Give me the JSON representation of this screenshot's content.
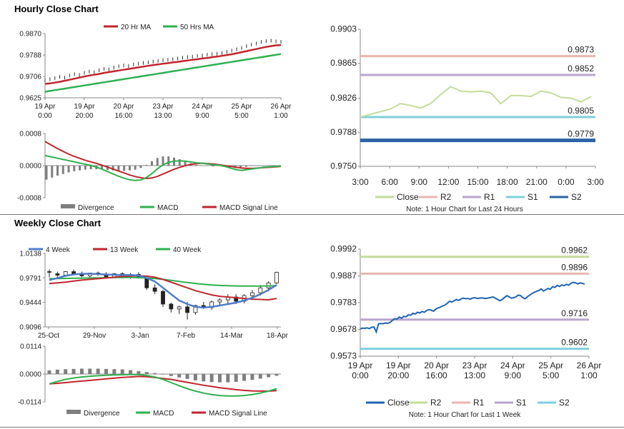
{
  "colors": {
    "ma20": "#c0262d",
    "ma50": "#2fb04f",
    "ma4w": "#4f7dc7",
    "ma13w": "#c0262d",
    "ma40w": "#2fb04f",
    "macd": "#2fb04f",
    "signal": "#c0262d",
    "divergence": "#7f7f7f",
    "close_light": "#c4dc9c",
    "close_dark": "#1f64b4",
    "r2": "#e8b6b0",
    "r1": "#b7a6cb",
    "s1": "#7fd0de",
    "s2": "#2b63a6",
    "r2_weekly": "#c4dc9c",
    "r1_weekly": "#e8b6b0",
    "s1_weekly": "#b7a6cb",
    "s2_weekly": "#7fd0de"
  },
  "hourly": {
    "title": "Hourly Close Chart",
    "price": {
      "legend": [
        "20 Hr MA",
        "50 Hrs MA"
      ],
      "yticks": [
        "0.9870",
        "0.9788",
        "0.9706",
        "0.9625"
      ],
      "ymin": 0.9625,
      "ymax": 0.987,
      "xticks": [
        [
          "19 Apr",
          "0:00"
        ],
        [
          "19 Apr",
          "20:00"
        ],
        [
          "20 Apr",
          "16:00"
        ],
        [
          "23 Apr",
          "13:00"
        ],
        [
          "24 Apr",
          "9:00"
        ],
        [
          "25 Apr",
          "5:00"
        ],
        [
          "26 Apr",
          "1:00"
        ]
      ],
      "close": [
        0.9692,
        0.9696,
        0.97,
        0.9705,
        0.9702,
        0.971,
        0.9715,
        0.9712,
        0.972,
        0.9725,
        0.9722,
        0.973,
        0.9735,
        0.9733,
        0.974,
        0.9745,
        0.9748,
        0.9746,
        0.9752,
        0.9755,
        0.9758,
        0.976,
        0.9763,
        0.9765,
        0.9768,
        0.977,
        0.9772,
        0.9775,
        0.9778,
        0.978,
        0.9782,
        0.9785,
        0.9786,
        0.9789,
        0.9791,
        0.9793,
        0.9796,
        0.98,
        0.9805,
        0.981,
        0.9815,
        0.9822,
        0.9828,
        0.9832,
        0.9838,
        0.9841,
        0.9843,
        0.984,
        0.9838
      ],
      "ma20": [
        0.9678,
        0.968,
        0.9683,
        0.9686,
        0.969,
        0.9694,
        0.9698,
        0.9702,
        0.9706,
        0.971,
        0.9713,
        0.9716,
        0.972,
        0.9723,
        0.9726,
        0.9729,
        0.9732,
        0.9735,
        0.9738,
        0.9741,
        0.9744,
        0.9747,
        0.975,
        0.9752,
        0.9755,
        0.9757,
        0.976,
        0.9762,
        0.9765,
        0.9767,
        0.977,
        0.9772,
        0.9775,
        0.9777,
        0.978,
        0.9782,
        0.9785,
        0.9788,
        0.9791,
        0.9795,
        0.9799,
        0.9803,
        0.9807,
        0.9811,
        0.9815,
        0.9819,
        0.9822,
        0.9825,
        0.9826
      ],
      "ma50": [
        0.9648,
        0.9651,
        0.9654,
        0.9657,
        0.966,
        0.9663,
        0.9666,
        0.9669,
        0.9672,
        0.9675,
        0.9678,
        0.9681,
        0.9684,
        0.9687,
        0.969,
        0.9693,
        0.9696,
        0.9699,
        0.9702,
        0.9705,
        0.9708,
        0.9711,
        0.9714,
        0.9717,
        0.972,
        0.9723,
        0.9726,
        0.9729,
        0.9732,
        0.9735,
        0.9738,
        0.9741,
        0.9744,
        0.9747,
        0.975,
        0.9753,
        0.9756,
        0.9759,
        0.9762,
        0.9765,
        0.9768,
        0.9771,
        0.9774,
        0.9777,
        0.978,
        0.9783,
        0.9786,
        0.9789,
        0.9792
      ]
    },
    "macd": {
      "yticks": [
        "0.0008",
        "0.0000",
        "-0.0008"
      ],
      "ymin": -0.0008,
      "ymax": 0.0008,
      "legend": [
        "Divergence",
        "MACD",
        "MACD Signal Line"
      ],
      "macd": [
        0.00025,
        0.00022,
        0.00019,
        0.00016,
        0.00013,
        0.0001,
        7e-05,
        4e-05,
        1e-05,
        -3e-05,
        -8e-05,
        -0.00014,
        -0.0002,
        -0.00026,
        -0.00031,
        -0.00035,
        -0.00037,
        -0.00036,
        -0.0003,
        -0.0002,
        -8e-05,
        2e-05,
        8e-05,
        0.00011,
        0.00012,
        0.00011,
        9e-05,
        7e-05,
        6e-05,
        4e-05,
        2e-05,
        1e-05,
        -2e-05,
        -6e-05,
        -0.0001,
        -0.00012,
        -0.0001,
        -8e-05,
        -6e-05,
        -4e-05,
        -3e-05,
        -2e-05,
        -1e-05
      ],
      "signal": [
        0.0006,
        0.00052,
        0.00044,
        0.00037,
        0.0003,
        0.00024,
        0.00019,
        0.00014,
        0.0001,
        6e-05,
        2e-05,
        -3e-05,
        -8e-05,
        -0.00013,
        -0.00018,
        -0.00023,
        -0.00027,
        -0.0003,
        -0.00032,
        -0.00031,
        -0.00027,
        -0.00021,
        -0.00015,
        -9e-05,
        -4e-05,
        0.0,
        3e-05,
        5e-05,
        6e-05,
        5e-05,
        4e-05,
        2e-05,
        0.0,
        -2e-05,
        -4e-05,
        -6e-05,
        -7e-05,
        -7e-05,
        -6e-05,
        -5e-05,
        -4e-05,
        -3e-05,
        -2e-05
      ],
      "divergence": [
        -0.00035,
        -0.0003,
        -0.00025,
        -0.00021,
        -0.00017,
        -0.00014,
        -0.00012,
        -0.0001,
        -9e-05,
        -9e-05,
        -0.0001,
        -0.00011,
        -0.00012,
        -0.00013,
        -0.00013,
        -0.00012,
        -0.0001,
        -6e-05,
        2e-05,
        0.00011,
        0.00019,
        0.00023,
        0.00023,
        0.0002,
        0.00016,
        0.00011,
        6e-05,
        2e-05,
        0.0,
        -1e-05,
        -2e-05,
        -1e-05,
        -2e-05,
        -4e-05,
        -6e-05,
        -6e-05,
        -3e-05,
        -1e-05,
        0.0,
        1e-05,
        1e-05,
        1e-05,
        1e-05
      ]
    },
    "levels": {
      "yticks": [
        "0.9903",
        "0.9865",
        "0.9826",
        "0.9788",
        "0.9750"
      ],
      "ymin": 0.975,
      "ymax": 0.9903,
      "xticks": [
        "3:00",
        "6:00",
        "9:00",
        "12:00",
        "15:00",
        "18:00",
        "21:00",
        "0:00",
        "3:00"
      ],
      "close": [
        0.9805,
        0.9808,
        0.9811,
        0.9814,
        0.982,
        0.9818,
        0.9815,
        0.982,
        0.983,
        0.9839,
        0.9834,
        0.9833,
        0.9834,
        0.9832,
        0.982,
        0.9829,
        0.9829,
        0.9828,
        0.9834,
        0.9832,
        0.9827,
        0.9826,
        0.9822,
        0.9828
      ],
      "R2": 0.9873,
      "R1": 0.9852,
      "S1": 0.9805,
      "S2": 0.9779,
      "labels": [
        "0.9873",
        "0.9852",
        "0.9805",
        "0.9779"
      ],
      "legend": [
        "Close",
        "R2",
        "R1",
        "S1",
        "S2"
      ],
      "note": "Note: 1 Hour Chart for Last 24 Hours"
    }
  },
  "weekly": {
    "title": "Weekly Close Chart",
    "price": {
      "legend": [
        "4 Week",
        "13 Week",
        "40 Week"
      ],
      "yticks": [
        "1.0138",
        "0.9791",
        "0.9444",
        "0.9096"
      ],
      "ymin": 0.9096,
      "ymax": 1.0138,
      "xticks": [
        "25-Oct",
        "29-Nov",
        "3-Jan",
        "7-Feb",
        "14-Mar",
        "18-Apr"
      ],
      "candles": [
        [
          0.988,
          0.991,
          0.98,
          0.987
        ],
        [
          0.985,
          0.988,
          0.979,
          0.983
        ],
        [
          0.983,
          0.989,
          0.981,
          0.988
        ],
        [
          0.988,
          0.991,
          0.984,
          0.985
        ],
        [
          0.985,
          0.988,
          0.98,
          0.982
        ],
        [
          0.982,
          0.986,
          0.979,
          0.986
        ],
        [
          0.986,
          0.988,
          0.982,
          0.984
        ],
        [
          0.984,
          0.987,
          0.979,
          0.98
        ],
        [
          0.98,
          0.986,
          0.979,
          0.985
        ],
        [
          0.985,
          0.987,
          0.98,
          0.981
        ],
        [
          0.981,
          0.986,
          0.978,
          0.984
        ],
        [
          0.984,
          0.987,
          0.978,
          0.979
        ],
        [
          0.979,
          0.98,
          0.962,
          0.965
        ],
        [
          0.965,
          0.97,
          0.956,
          0.96
        ],
        [
          0.96,
          0.962,
          0.938,
          0.942
        ],
        [
          0.942,
          0.944,
          0.93,
          0.935
        ],
        [
          0.935,
          0.94,
          0.928,
          0.938
        ],
        [
          0.938,
          0.945,
          0.92,
          0.93
        ],
        [
          0.93,
          0.941,
          0.927,
          0.94
        ],
        [
          0.94,
          0.945,
          0.935,
          0.937
        ],
        [
          0.937,
          0.947,
          0.934,
          0.945
        ],
        [
          0.945,
          0.95,
          0.94,
          0.948
        ],
        [
          0.948,
          0.956,
          0.943,
          0.952
        ],
        [
          0.952,
          0.956,
          0.942,
          0.946
        ],
        [
          0.946,
          0.956,
          0.943,
          0.954
        ],
        [
          0.954,
          0.962,
          0.95,
          0.958
        ],
        [
          0.958,
          0.969,
          0.954,
          0.965
        ],
        [
          0.965,
          0.974,
          0.96,
          0.972
        ],
        [
          0.972,
          0.988,
          0.97,
          0.987
        ]
      ],
      "ma4": [
        0.976,
        0.979,
        0.982,
        0.984,
        0.985,
        0.985,
        0.9845,
        0.984,
        0.9835,
        0.983,
        0.9832,
        0.9825,
        0.979,
        0.974,
        0.965,
        0.956,
        0.947,
        0.942,
        0.938,
        0.937,
        0.938,
        0.94,
        0.942,
        0.944,
        0.947,
        0.951,
        0.956,
        0.962,
        0.969
      ],
      "ma13": [
        0.971,
        0.972,
        0.973,
        0.9745,
        0.976,
        0.977,
        0.978,
        0.979,
        0.98,
        0.981,
        0.9815,
        0.982,
        0.9815,
        0.98,
        0.977,
        0.973,
        0.969,
        0.965,
        0.961,
        0.958,
        0.955,
        0.953,
        0.952,
        0.951,
        0.95,
        0.949,
        0.9485,
        0.948,
        0.95
      ],
      "ma40": [
        0.978,
        0.9782,
        0.9784,
        0.9786,
        0.9788,
        0.979,
        0.9792,
        0.9794,
        0.9795,
        0.9796,
        0.9796,
        0.9795,
        0.979,
        0.9782,
        0.977,
        0.9756,
        0.974,
        0.9725,
        0.9712,
        0.97,
        0.969,
        0.9684,
        0.968,
        0.9677,
        0.9675,
        0.9675,
        0.9676,
        0.9678,
        0.968
      ]
    },
    "macd": {
      "yticks": [
        "0.0114",
        "0.0000",
        "-0.0114"
      ],
      "ymin": -0.0114,
      "ymax": 0.0114,
      "legend": [
        "Divergence",
        "MACD",
        "MACD Signal Line"
      ],
      "macd": [
        -0.004,
        -0.003,
        -0.0022,
        -0.0016,
        -0.0012,
        -0.0009,
        -0.0007,
        -0.0005,
        -0.0004,
        -0.0003,
        -0.0002,
        -0.0002,
        -0.0006,
        -0.0012,
        -0.0022,
        -0.0035,
        -0.0048,
        -0.006,
        -0.007,
        -0.0078,
        -0.0084,
        -0.0088,
        -0.009,
        -0.009,
        -0.0088,
        -0.0084,
        -0.0078,
        -0.007,
        -0.006
      ],
      "signal": [
        -0.004,
        -0.0038,
        -0.0035,
        -0.0032,
        -0.0029,
        -0.0026,
        -0.0023,
        -0.002,
        -0.0017,
        -0.0014,
        -0.0012,
        -0.001,
        -0.0011,
        -0.0014,
        -0.0018,
        -0.0022,
        -0.0028,
        -0.0034,
        -0.004,
        -0.0046,
        -0.0051,
        -0.0056,
        -0.006,
        -0.0064,
        -0.0067,
        -0.0069,
        -0.007,
        -0.007,
        -0.0068
      ],
      "divergence": [
        0.0015,
        0.0018,
        0.002,
        0.0021,
        0.0022,
        0.0022,
        0.0022,
        0.0021,
        0.002,
        0.0019,
        0.0016,
        0.0012,
        0.0008,
        0.0004,
        -0.0002,
        -0.0008,
        -0.0014,
        -0.002,
        -0.0026,
        -0.003,
        -0.0033,
        -0.0034,
        -0.0034,
        -0.0032,
        -0.0028,
        -0.0024,
        -0.0019,
        -0.0013,
        -0.0007
      ]
    },
    "levels": {
      "yticks": [
        "0.9992",
        "0.9887",
        "0.9783",
        "0.9678",
        "0.9573"
      ],
      "ymin": 0.9573,
      "ymax": 0.9992,
      "xticks": [
        [
          "19 Apr",
          "0:00"
        ],
        [
          "19 Apr",
          "20:00"
        ],
        [
          "20 Apr",
          "16:00"
        ],
        [
          "23 Apr",
          "13:00"
        ],
        [
          "24 Apr",
          "9:00"
        ],
        [
          "25 Apr",
          "5:00"
        ],
        [
          "26 Apr",
          "1:00"
        ]
      ],
      "close": [
        0.968,
        0.9683,
        0.9682,
        0.9684,
        0.9681,
        0.9686,
        0.9687,
        0.9668,
        0.97,
        0.9701,
        0.97,
        0.9703,
        0.9702,
        0.9705,
        0.9713,
        0.972,
        0.9718,
        0.9726,
        0.9722,
        0.9729,
        0.9727,
        0.9735,
        0.9733,
        0.9741,
        0.9738,
        0.9745,
        0.9742,
        0.9748,
        0.9745,
        0.9752,
        0.9755,
        0.9753,
        0.9749,
        0.9757,
        0.9762,
        0.9765,
        0.977,
        0.9773,
        0.978,
        0.9788,
        0.9785,
        0.979,
        0.9795,
        0.9791,
        0.9797,
        0.98,
        0.9798,
        0.9799,
        0.9796,
        0.98,
        0.9802,
        0.9799,
        0.98,
        0.9801,
        0.98,
        0.9799,
        0.9801,
        0.9803,
        0.9805,
        0.98,
        0.9795,
        0.979,
        0.9795,
        0.9803,
        0.981,
        0.9805,
        0.98,
        0.9802,
        0.9805,
        0.9812,
        0.981,
        0.9802,
        0.9798,
        0.9806,
        0.9812,
        0.9818,
        0.9823,
        0.9827,
        0.983,
        0.9836,
        0.9828,
        0.9833,
        0.9838,
        0.9835,
        0.9845,
        0.9842,
        0.985,
        0.9846,
        0.9852,
        0.9849,
        0.9854,
        0.9851,
        0.9858,
        0.9862,
        0.986,
        0.9856,
        0.986,
        0.9858,
        0.9855
      ],
      "R2": 0.9962,
      "R1": 0.9896,
      "S1": 0.9716,
      "S2": 0.9602,
      "labels": [
        "0.9962",
        "0.9896",
        "0.9716",
        "0.9602"
      ],
      "legend": [
        "Close",
        "R2",
        "R1",
        "S1",
        "S2"
      ],
      "note": "Note: 1 Hour Chart for Last 1 Week"
    }
  }
}
